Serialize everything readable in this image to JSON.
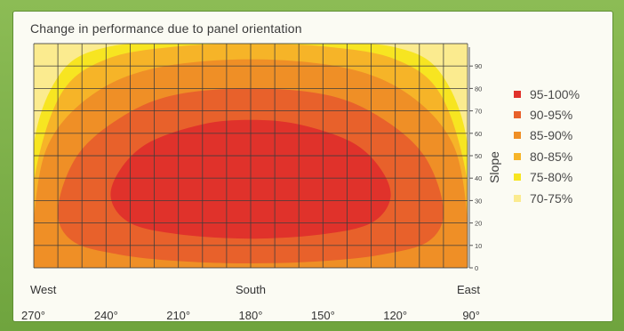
{
  "chart_data": {
    "type": "heatmap",
    "title": "Change in performance due to panel orientation",
    "ylabel": "Slope",
    "xlabel": "",
    "x_direction_labels": [
      {
        "label": "West",
        "at": 270
      },
      {
        "label": "South",
        "at": 180
      },
      {
        "label": "East",
        "at": 90
      }
    ],
    "x_ticks": [
      {
        "value": 270,
        "label": "270°"
      },
      {
        "value": 240,
        "label": "240°"
      },
      {
        "value": 210,
        "label": "210°"
      },
      {
        "value": 180,
        "label": "180°"
      },
      {
        "value": 150,
        "label": "150°"
      },
      {
        "value": 120,
        "label": "120°"
      },
      {
        "value": 90,
        "label": "90°"
      }
    ],
    "xlim": [
      270,
      90
    ],
    "y_ticks": [
      0,
      10,
      20,
      30,
      40,
      50,
      60,
      70,
      80,
      90
    ],
    "ylim": [
      0,
      100
    ],
    "grid": true,
    "legend_placement": "right",
    "bands": [
      {
        "label": "95-100%",
        "color": "#e0322b",
        "boundary": [
          [
            238,
            31
          ],
          [
            234,
            44
          ],
          [
            222,
            56
          ],
          [
            200,
            64
          ],
          [
            180,
            66
          ],
          [
            160,
            64
          ],
          [
            138,
            56
          ],
          [
            126,
            44
          ],
          [
            122,
            31
          ],
          [
            130,
            20
          ],
          [
            150,
            15
          ],
          [
            180,
            13
          ],
          [
            210,
            15
          ],
          [
            230,
            20
          ]
        ]
      },
      {
        "label": "90-95%",
        "color": "#e8612b",
        "boundary": [
          [
            260,
            26
          ],
          [
            252,
            50
          ],
          [
            234,
            67
          ],
          [
            212,
            77
          ],
          [
            180,
            80
          ],
          [
            148,
            77
          ],
          [
            126,
            67
          ],
          [
            108,
            50
          ],
          [
            100,
            26
          ],
          [
            106,
            12
          ],
          [
            125,
            6
          ],
          [
            150,
            3
          ],
          [
            180,
            2
          ],
          [
            210,
            3
          ],
          [
            235,
            6
          ],
          [
            254,
            12
          ]
        ]
      },
      {
        "label": "85-90%",
        "color": "#ef8f26",
        "boundary": [
          [
            270,
            22
          ],
          [
            264,
            55
          ],
          [
            246,
            77
          ],
          [
            220,
            89
          ],
          [
            180,
            93
          ],
          [
            140,
            89
          ],
          [
            114,
            77
          ],
          [
            96,
            55
          ],
          [
            90,
            22
          ],
          [
            90,
            0
          ],
          [
            270,
            0
          ]
        ]
      },
      {
        "label": "80-85%",
        "color": "#f6b428",
        "boundary": [
          [
            270,
            38
          ],
          [
            259,
            77
          ],
          [
            240,
            93
          ],
          [
            210,
            98.8
          ],
          [
            180,
            99.8
          ],
          [
            150,
            98.8
          ],
          [
            120,
            93
          ],
          [
            101,
            77
          ],
          [
            90,
            38
          ],
          [
            90,
            0
          ],
          [
            270,
            0
          ]
        ]
      },
      {
        "label": "75-80%",
        "color": "#f7e521",
        "boundary": [
          [
            270,
            55
          ],
          [
            258,
            88
          ],
          [
            238,
            98.8
          ],
          [
            210,
            99.8
          ],
          [
            180,
            100
          ],
          [
            150,
            99.8
          ],
          [
            122,
            98.8
          ],
          [
            102,
            88
          ],
          [
            90,
            55
          ],
          [
            90,
            0
          ],
          [
            270,
            0
          ]
        ]
      },
      {
        "label": "70-75%",
        "color": "#fbeb8f",
        "boundary": [
          [
            270,
            0
          ],
          [
            270,
            100
          ],
          [
            90,
            100
          ],
          [
            90,
            0
          ]
        ]
      }
    ],
    "legend_order": [
      "95-100%",
      "90-95%",
      "85-90%",
      "80-85%",
      "75-80%",
      "70-75%"
    ]
  }
}
